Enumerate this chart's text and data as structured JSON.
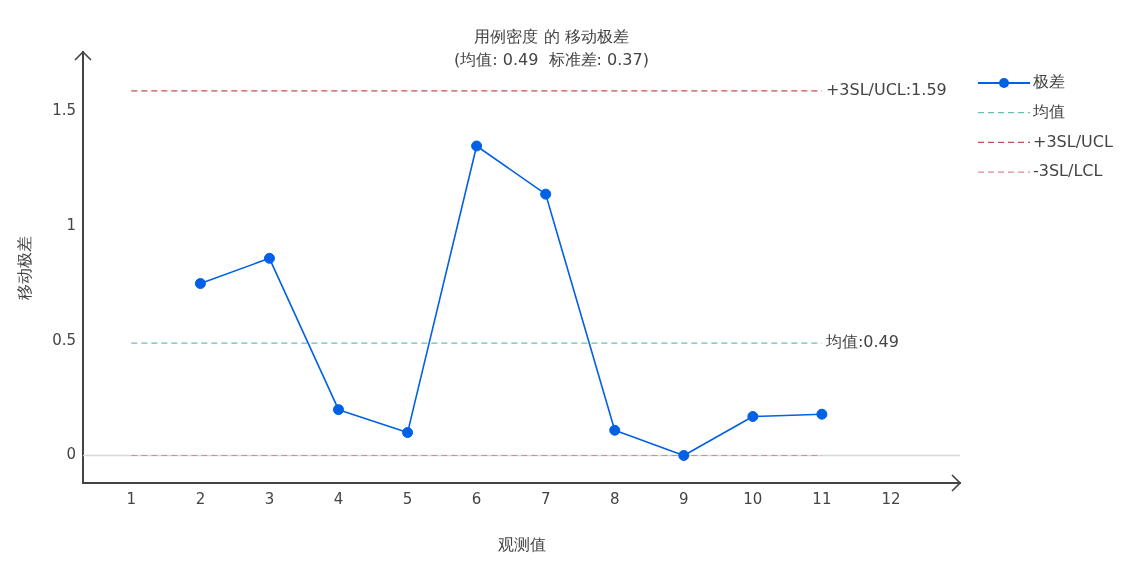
{
  "chart_data": {
    "type": "line",
    "title": "用例密度 的 移动极差",
    "subtitle": "(均值: 0.49  标准差: 0.37)",
    "xlabel": "观测值",
    "ylabel": "移动极差",
    "series": [
      {
        "name": "极差",
        "color": "#0060e6",
        "x": [
          2,
          3,
          4,
          5,
          6,
          7,
          8,
          9,
          10,
          11
        ],
        "values": [
          0.75,
          0.86,
          0.2,
          0.1,
          1.35,
          1.14,
          0.11,
          0,
          0.17,
          0.18
        ],
        "line_style": "solid"
      },
      {
        "name": "均值",
        "color": "#66c2b0",
        "x": [
          1,
          11
        ],
        "values": [
          0.49,
          0.49
        ],
        "marker": "none",
        "line_style": "dashed"
      },
      {
        "name": "+3SL/UCL",
        "color": "#c0504d",
        "x": [
          1,
          11
        ],
        "values": [
          1.59,
          1.59
        ],
        "marker": "none",
        "line_style": "dashed"
      },
      {
        "name": "-3SL/LCL",
        "color": "#d98c8c",
        "x": [
          1,
          11
        ],
        "values": [
          0,
          0
        ],
        "marker": "none",
        "line_style": "dashed"
      }
    ],
    "xlim": [
      0.3,
      13
    ],
    "xticks": [
      1,
      2,
      3,
      4,
      5,
      6,
      7,
      8,
      9,
      10,
      11,
      12
    ],
    "ylim": [
      -0.12,
      1.76
    ],
    "yticks": [
      0,
      0.5,
      1,
      1.5
    ],
    "ref_lines": [
      {
        "axis": "y",
        "value": 0,
        "color": "#d9d9d9",
        "line_style": "solid"
      }
    ],
    "annotations": [
      {
        "text": "+3SL/UCL:1.59",
        "x": 11,
        "y": 1.59
      },
      {
        "text": "均值:0.49",
        "x": 11,
        "y": 0.49
      }
    ],
    "legend": "top right",
    "marker": "circle"
  }
}
